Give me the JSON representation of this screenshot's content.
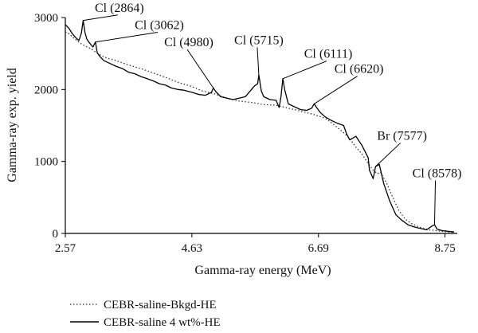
{
  "chart_data": {
    "type": "line",
    "xlabel": "Gamma-ray energy (MeV)",
    "ylabel": "Gamma-ray exp. yield",
    "xlim": [
      2.57,
      8.95
    ],
    "ylim": [
      0,
      3000
    ],
    "x_ticks": [
      2.57,
      4.63,
      6.69,
      8.75
    ],
    "x_tick_labels": [
      "2.57",
      "4.63",
      "6.69",
      "8.75"
    ],
    "y_ticks": [
      0,
      1000,
      2000,
      3000
    ],
    "y_tick_labels": [
      "0",
      "1000",
      "2000",
      "3000"
    ],
    "grid": false,
    "legend_position": "bottom-left",
    "series": [
      {
        "name": "CEBR-saline-Bkgd-HE",
        "style": "dotted",
        "color": "#333333",
        "x": [
          2.57,
          2.62,
          2.7,
          2.8,
          2.9,
          3.0,
          3.06,
          3.2,
          3.4,
          3.6,
          3.8,
          4.0,
          4.2,
          4.4,
          4.63,
          4.8,
          5.0,
          5.2,
          5.4,
          5.6,
          5.8,
          6.0,
          6.1,
          6.2,
          6.4,
          6.62,
          6.8,
          6.9,
          7.0,
          7.1,
          7.2,
          7.3,
          7.4,
          7.5,
          7.58,
          7.65,
          7.7,
          7.8,
          7.9,
          8.0,
          8.1,
          8.2,
          8.3,
          8.4,
          8.5,
          8.6,
          8.7,
          8.8,
          8.9
        ],
        "y": [
          2800,
          2780,
          2720,
          2650,
          2600,
          2560,
          2520,
          2450,
          2400,
          2340,
          2290,
          2230,
          2170,
          2100,
          2040,
          1980,
          1940,
          1880,
          1840,
          1820,
          1790,
          1780,
          1760,
          1740,
          1700,
          1650,
          1600,
          1540,
          1470,
          1400,
          1320,
          1200,
          1100,
          970,
          880,
          830,
          850,
          700,
          500,
          320,
          200,
          140,
          100,
          70,
          50,
          40,
          30,
          20,
          15
        ]
      },
      {
        "name": "CEBR-saline 4 wt%-HE",
        "style": "solid",
        "color": "#000000",
        "x": [
          2.57,
          2.63,
          2.68,
          2.74,
          2.79,
          2.83,
          2.86,
          2.89,
          2.92,
          2.96,
          3.02,
          3.06,
          3.09,
          3.14,
          3.2,
          3.3,
          3.4,
          3.5,
          3.6,
          3.7,
          3.8,
          3.9,
          4.0,
          4.1,
          4.2,
          4.3,
          4.4,
          4.5,
          4.63,
          4.75,
          4.85,
          4.95,
          4.98,
          5.02,
          5.1,
          5.2,
          5.3,
          5.4,
          5.5,
          5.6,
          5.65,
          5.7,
          5.72,
          5.76,
          5.8,
          5.9,
          6.0,
          6.05,
          6.08,
          6.11,
          6.14,
          6.2,
          6.3,
          6.4,
          6.5,
          6.58,
          6.62,
          6.66,
          6.72,
          6.8,
          6.9,
          7.0,
          7.1,
          7.15,
          7.2,
          7.3,
          7.4,
          7.5,
          7.52,
          7.58,
          7.62,
          7.68,
          7.75,
          7.85,
          7.95,
          8.05,
          8.15,
          8.25,
          8.35,
          8.45,
          8.5,
          8.55,
          8.58,
          8.62,
          8.7,
          8.8,
          8.9
        ],
        "y": [
          2900,
          2850,
          2780,
          2720,
          2680,
          2780,
          2960,
          2790,
          2700,
          2650,
          2590,
          2660,
          2510,
          2450,
          2400,
          2360,
          2320,
          2290,
          2240,
          2220,
          2180,
          2150,
          2120,
          2080,
          2060,
          2020,
          2000,
          1990,
          1960,
          1930,
          1920,
          1960,
          2020,
          1970,
          1900,
          1880,
          1860,
          1880,
          1900,
          2000,
          2050,
          2080,
          2200,
          1980,
          1900,
          1860,
          1850,
          1750,
          1900,
          2150,
          2000,
          1800,
          1760,
          1720,
          1710,
          1740,
          1800,
          1750,
          1680,
          1620,
          1570,
          1530,
          1500,
          1380,
          1300,
          1350,
          1220,
          1050,
          880,
          760,
          930,
          960,
          700,
          450,
          260,
          180,
          120,
          90,
          70,
          50,
          80,
          110,
          120,
          60,
          40,
          30,
          20
        ]
      }
    ],
    "annotations": [
      {
        "text": "Cl (2864)",
        "x": 2.864,
        "y": 2960,
        "lx": 3.45,
        "ly": 3080
      },
      {
        "text": "Cl (3062)",
        "x": 3.062,
        "y": 2660,
        "lx": 4.1,
        "ly": 2840
      },
      {
        "text": "Cl (4980)",
        "x": 4.98,
        "y": 2020,
        "lx": 4.58,
        "ly": 2600
      },
      {
        "text": "Cl (5715)",
        "x": 5.72,
        "y": 2200,
        "lx": 5.72,
        "ly": 2630
      },
      {
        "text": "Cl (6111)",
        "x": 6.11,
        "y": 2150,
        "lx": 6.85,
        "ly": 2440
      },
      {
        "text": "Cl (6620)",
        "x": 6.62,
        "y": 1800,
        "lx": 7.35,
        "ly": 2230
      },
      {
        "text": "Br (7577)",
        "x": 7.62,
        "y": 930,
        "lx": 8.05,
        "ly": 1300
      },
      {
        "text": "Cl (8578)",
        "x": 8.58,
        "y": 120,
        "lx": 8.62,
        "ly": 780
      }
    ]
  }
}
